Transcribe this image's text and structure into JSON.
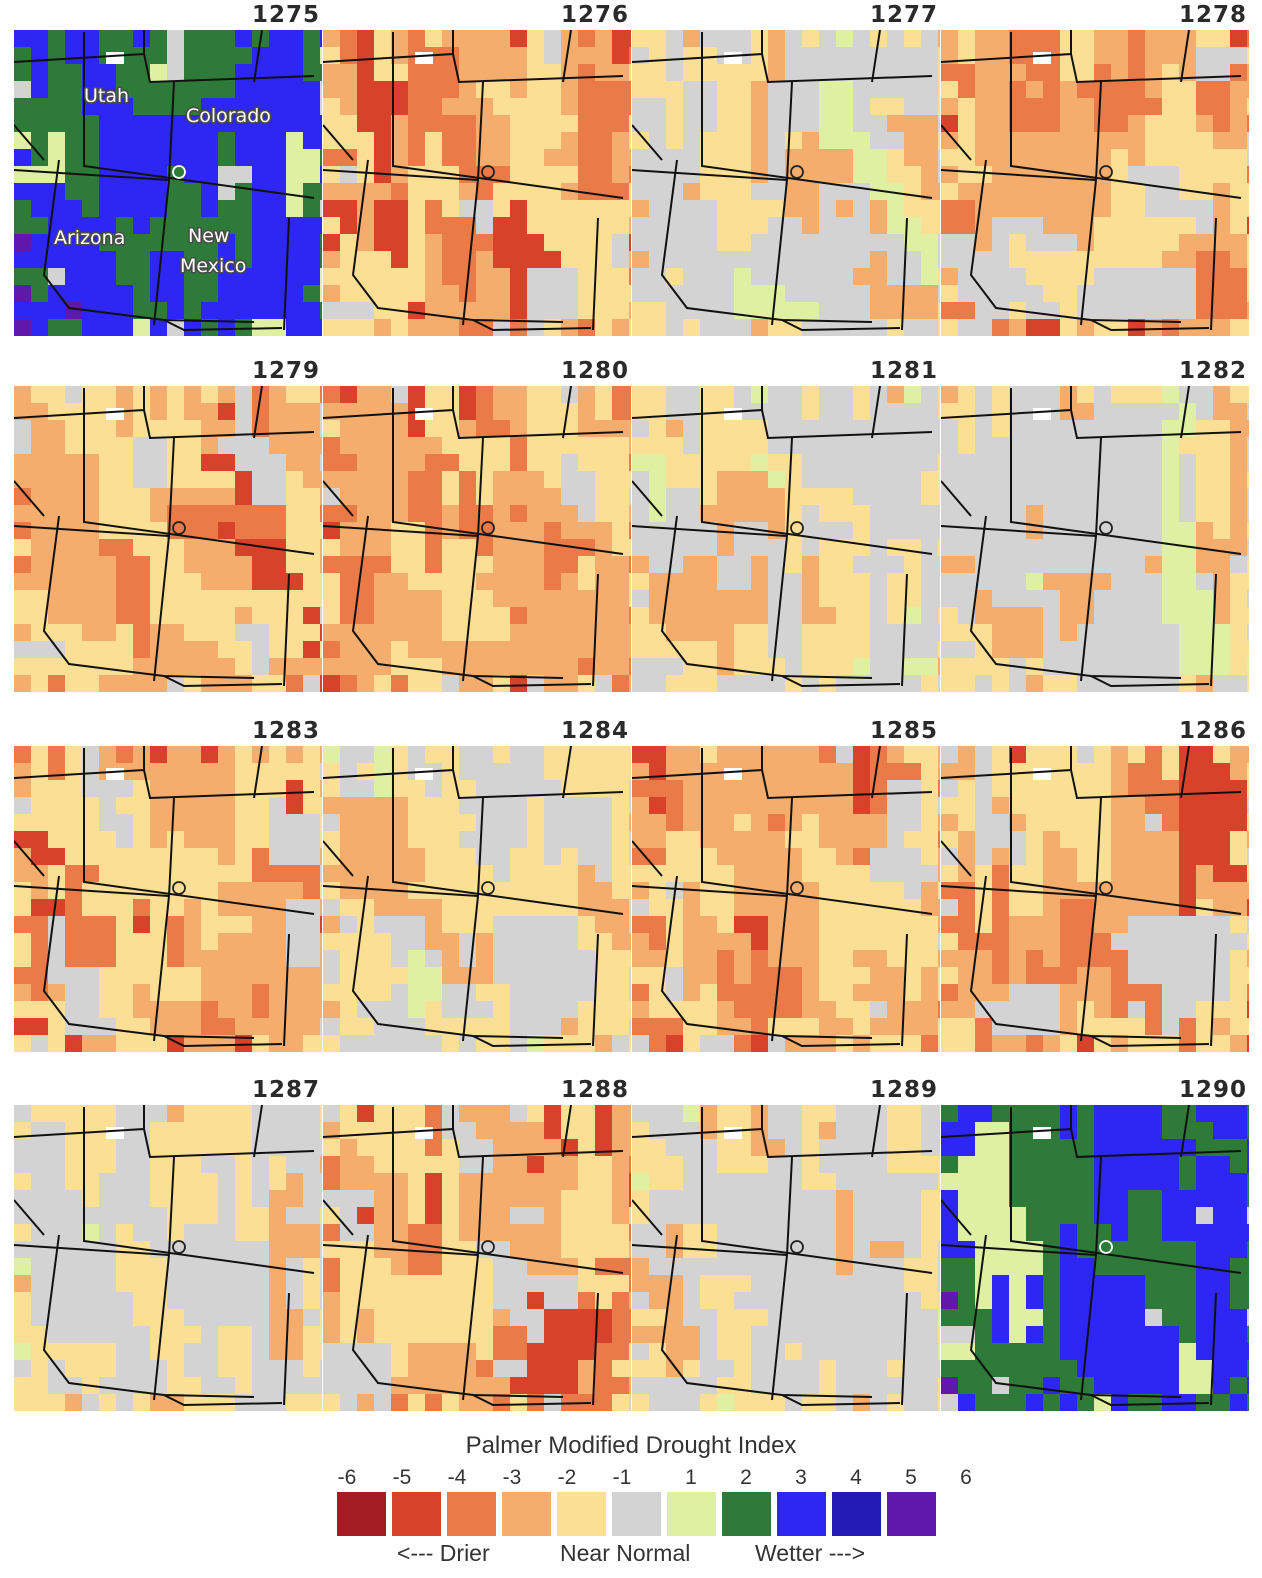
{
  "title": "Palmer Modified Drought Index",
  "legend": {
    "ticks": [
      "-6",
      "-5",
      "-4",
      "-3",
      "-2",
      "-1",
      "1",
      "2",
      "3",
      "4",
      "5",
      "6"
    ],
    "classes": [
      {
        "name": "<= -5",
        "color": "#a11c23"
      },
      {
        "name": "-5 to -4",
        "color": "#d9422a"
      },
      {
        "name": "-4 to -3",
        "color": "#ea7a47"
      },
      {
        "name": "-3 to -2",
        "color": "#f4ad6c"
      },
      {
        "name": "-2 to -1",
        "color": "#fbdf94"
      },
      {
        "name": "-1 to 1",
        "color": "#d3d3d3"
      },
      {
        "name": "1 to 2",
        "color": "#dff0a2"
      },
      {
        "name": "2 to 3",
        "color": "#2d7a39"
      },
      {
        "name": "3 to 4",
        "color": "#2e26f2"
      },
      {
        "name": "4 to 5",
        "color": "#241ab6"
      },
      {
        "name": ">= 5",
        "color": "#6018ac"
      }
    ],
    "drier_label": "<--- Drier",
    "normal_label": "Near Normal",
    "wetter_label": "Wetter --->"
  },
  "state_labels": [
    "Utah",
    "Colorado",
    "Arizona",
    "New\nMexico"
  ],
  "years": [
    {
      "year": "1275",
      "dominant": "wet"
    },
    {
      "year": "1276",
      "dominant": "dry"
    },
    {
      "year": "1277",
      "dominant": "near"
    },
    {
      "year": "1278",
      "dominant": "dry"
    },
    {
      "year": "1279",
      "dominant": "dry"
    },
    {
      "year": "1280",
      "dominant": "dry"
    },
    {
      "year": "1281",
      "dominant": "near"
    },
    {
      "year": "1282",
      "dominant": "near"
    },
    {
      "year": "1283",
      "dominant": "dry"
    },
    {
      "year": "1284",
      "dominant": "near"
    },
    {
      "year": "1285",
      "dominant": "dry"
    },
    {
      "year": "1286",
      "dominant": "dry"
    },
    {
      "year": "1287",
      "dominant": "near"
    },
    {
      "year": "1288",
      "dominant": "dry"
    },
    {
      "year": "1289",
      "dominant": "near"
    },
    {
      "year": "1290",
      "dominant": "wet"
    }
  ]
}
